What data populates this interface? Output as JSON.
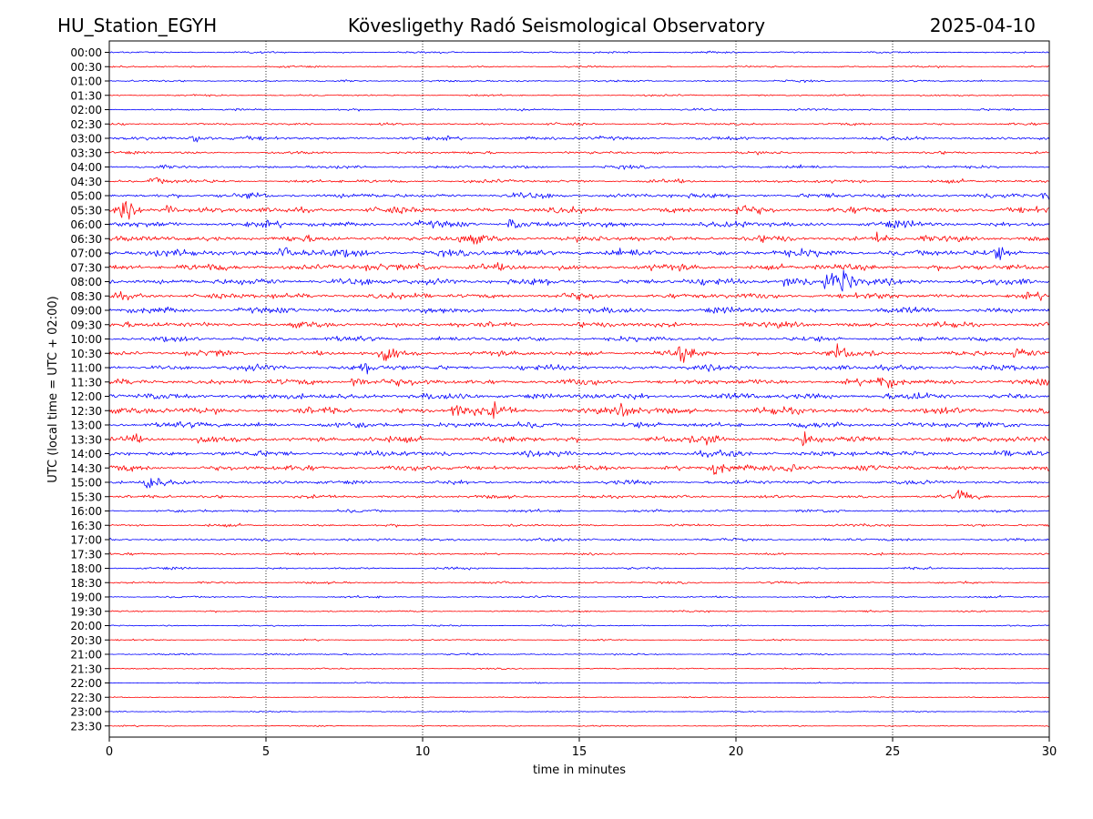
{
  "header": {
    "station": "HU_Station_EGYH",
    "title": "Kövesligethy Radó Seismological Observatory",
    "date": "2025-04-10"
  },
  "chart_data": {
    "type": "line",
    "title": "Kövesligethy Radó Seismological Observatory",
    "xlabel": "time in minutes",
    "ylabel": "UTC (local time = UTC + 02:00)",
    "xlim": [
      0,
      30
    ],
    "x_ticks": [
      0,
      5,
      10,
      15,
      20,
      25,
      30
    ],
    "grid": "vertical dotted at each x tick",
    "row_labels": [
      "00:00",
      "00:30",
      "01:00",
      "01:30",
      "02:00",
      "02:30",
      "03:00",
      "03:30",
      "04:00",
      "04:30",
      "05:00",
      "05:30",
      "06:00",
      "06:30",
      "07:00",
      "07:30",
      "08:00",
      "08:30",
      "09:00",
      "09:30",
      "10:00",
      "10:30",
      "11:00",
      "11:30",
      "12:00",
      "12:30",
      "13:00",
      "13:30",
      "14:00",
      "14:30",
      "15:00",
      "15:30",
      "16:00",
      "16:30",
      "17:00",
      "17:30",
      "18:00",
      "18:30",
      "19:00",
      "19:30",
      "20:00",
      "20:30",
      "21:00",
      "21:30",
      "22:00",
      "22:30",
      "23:00",
      "23:30"
    ],
    "trace_colors": [
      "#0000ff",
      "#ff0000"
    ],
    "noise_level": [
      0.2,
      0.18,
      0.2,
      0.18,
      0.22,
      0.24,
      0.38,
      0.28,
      0.32,
      0.34,
      0.5,
      0.62,
      0.62,
      0.6,
      0.72,
      0.66,
      0.68,
      0.6,
      0.6,
      0.56,
      0.52,
      0.56,
      0.56,
      0.6,
      0.66,
      0.68,
      0.6,
      0.62,
      0.6,
      0.56,
      0.42,
      0.34,
      0.3,
      0.26,
      0.3,
      0.22,
      0.22,
      0.22,
      0.2,
      0.18,
      0.16,
      0.15,
      0.18,
      0.14,
      0.12,
      0.12,
      0.12,
      0.12
    ],
    "events": [
      {
        "row": 6,
        "minute": 2.6,
        "amp": 0.9
      },
      {
        "row": 9,
        "minute": 1.3,
        "amp": 1.1
      },
      {
        "row": 10,
        "minute": 29.8,
        "amp": 1.0
      },
      {
        "row": 11,
        "minute": 0.4,
        "amp": 1.4
      },
      {
        "row": 11,
        "minute": 1.8,
        "amp": 0.8
      },
      {
        "row": 11,
        "minute": 20.0,
        "amp": 0.8
      },
      {
        "row": 12,
        "minute": 12.8,
        "amp": 0.9
      },
      {
        "row": 13,
        "minute": 11.2,
        "amp": 1.1
      },
      {
        "row": 13,
        "minute": 24.5,
        "amp": 0.9
      },
      {
        "row": 14,
        "minute": 5.5,
        "amp": 1.0
      },
      {
        "row": 14,
        "minute": 28.3,
        "amp": 1.1
      },
      {
        "row": 15,
        "minute": 9.8,
        "amp": 0.9
      },
      {
        "row": 16,
        "minute": 21.6,
        "amp": 1.4
      },
      {
        "row": 16,
        "minute": 22.9,
        "amp": 1.9
      },
      {
        "row": 16,
        "minute": 23.4,
        "amp": 1.6
      },
      {
        "row": 21,
        "minute": 8.8,
        "amp": 1.2
      },
      {
        "row": 21,
        "minute": 18.2,
        "amp": 1.3
      },
      {
        "row": 21,
        "minute": 23.2,
        "amp": 1.0
      },
      {
        "row": 21,
        "minute": 28.9,
        "amp": 1.1
      },
      {
        "row": 22,
        "minute": 8.1,
        "amp": 1.0
      },
      {
        "row": 23,
        "minute": 7.8,
        "amp": 1.3
      },
      {
        "row": 23,
        "minute": 24.6,
        "amp": 1.0
      },
      {
        "row": 25,
        "minute": 11.0,
        "amp": 1.2
      },
      {
        "row": 25,
        "minute": 12.2,
        "amp": 1.0
      },
      {
        "row": 25,
        "minute": 16.3,
        "amp": 0.9
      },
      {
        "row": 27,
        "minute": 0.6,
        "amp": 0.8
      },
      {
        "row": 27,
        "minute": 19.0,
        "amp": 1.0
      },
      {
        "row": 27,
        "minute": 22.2,
        "amp": 1.2
      },
      {
        "row": 29,
        "minute": 19.3,
        "amp": 1.1
      },
      {
        "row": 29,
        "minute": 21.6,
        "amp": 0.9
      },
      {
        "row": 30,
        "minute": 1.2,
        "amp": 1.2
      },
      {
        "row": 31,
        "minute": 27.1,
        "amp": 0.8
      }
    ]
  }
}
